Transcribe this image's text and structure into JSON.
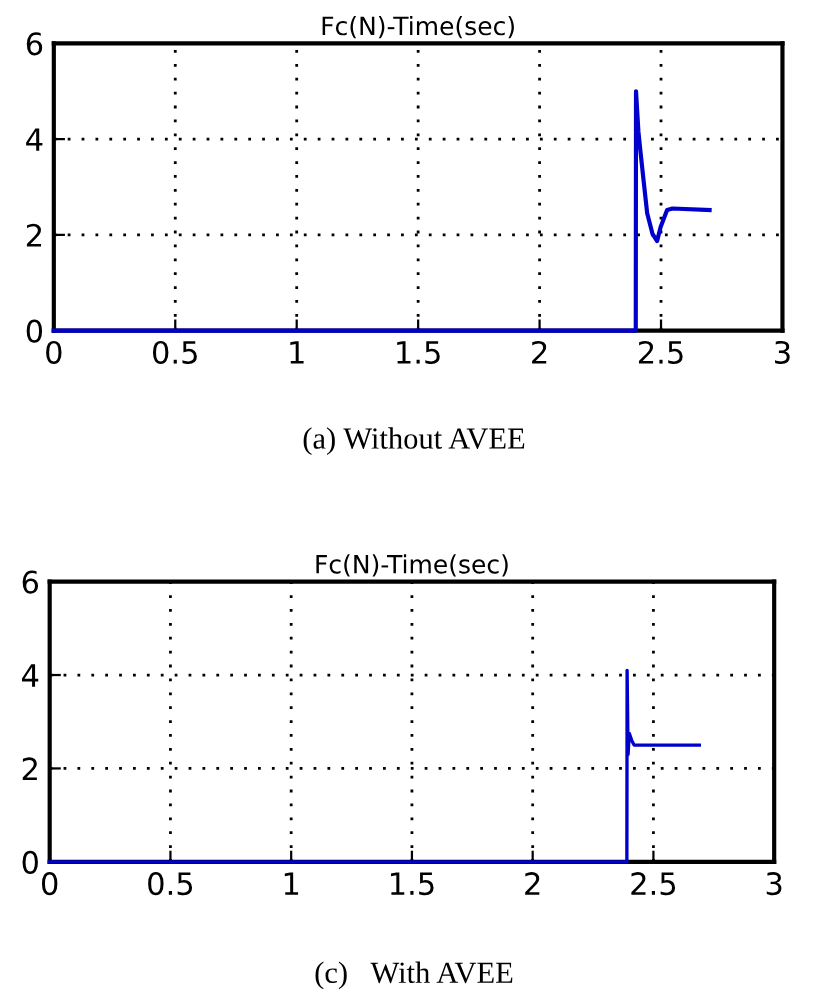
{
  "chart_data": [
    {
      "type": "line",
      "title": "Fc(N)-Time(sec)",
      "annotations": [
        "(a) Without AVEE"
      ],
      "xlim": [
        0,
        3
      ],
      "ylim": [
        0,
        6
      ],
      "xticks": [
        0,
        0.5,
        1,
        1.5,
        2,
        2.5,
        3
      ],
      "yticks": [
        0,
        2,
        4,
        6
      ],
      "grid": true,
      "legend": false,
      "series": [
        {
          "color": "#0000cc",
          "x": [
            0,
            2.396,
            2.397,
            2.407,
            2.415,
            2.429,
            2.443,
            2.465,
            2.484,
            2.498,
            2.525,
            2.547,
            2.7
          ],
          "values": [
            0,
            0,
            5,
            4.15,
            3.76,
            3.1,
            2.45,
            2.02,
            1.87,
            2.16,
            2.52,
            2.55,
            2.52
          ]
        }
      ]
    },
    {
      "type": "line",
      "title": "Fc(N)-Time(sec)",
      "annotations": [
        "(c)   With AVEE"
      ],
      "xlim": [
        0,
        3
      ],
      "ylim": [
        0,
        6
      ],
      "xticks": [
        0,
        0.5,
        1,
        1.5,
        2,
        2.5,
        3
      ],
      "yticks": [
        0,
        2,
        4,
        6
      ],
      "grid": true,
      "legend": false,
      "series": [
        {
          "color": "#0000cc",
          "x": [
            0,
            2.39,
            2.391,
            2.395,
            2.4,
            2.41,
            2.42,
            2.69
          ],
          "values": [
            0,
            0,
            4.1,
            2.3,
            2.75,
            2.6,
            2.5,
            2.5
          ]
        }
      ]
    }
  ]
}
